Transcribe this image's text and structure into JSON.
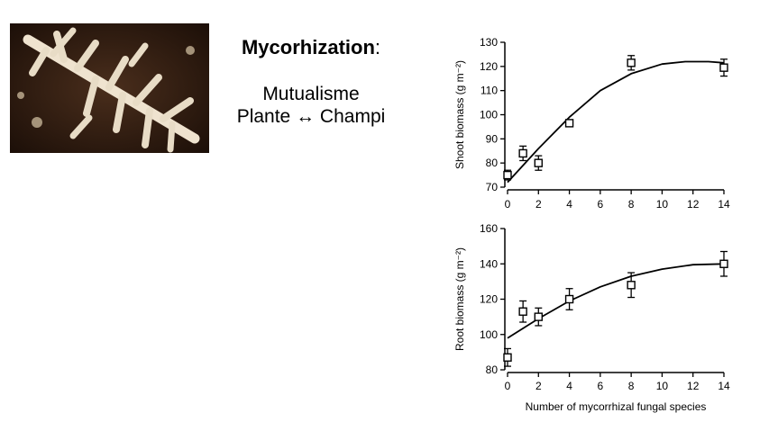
{
  "caption": {
    "title": "Mycorhization",
    "title_suffix": ":",
    "line1": "Mutualisme",
    "line2_left": "Plante",
    "line2_arrow": "↔",
    "line2_right": "Champi"
  },
  "chart_data": [
    {
      "type": "scatter",
      "title": "",
      "xlabel": "",
      "ylabel": "Shoot biomass  (g m⁻²)",
      "xlim": [
        0,
        14
      ],
      "ylim": [
        70,
        130
      ],
      "xticks": [
        0,
        2,
        4,
        6,
        8,
        10,
        12,
        14
      ],
      "yticks": [
        70,
        80,
        90,
        100,
        110,
        120,
        130
      ],
      "points": [
        {
          "x": 0,
          "y": 75,
          "err": 2
        },
        {
          "x": 1,
          "y": 84,
          "err": 3
        },
        {
          "x": 2,
          "y": 80,
          "err": 3
        },
        {
          "x": 4,
          "y": 96.5,
          "err": 1
        },
        {
          "x": 8,
          "y": 121.5,
          "err": 3
        },
        {
          "x": 14,
          "y": 119.5,
          "err": 3.5
        }
      ],
      "fit": {
        "x": [
          0,
          2,
          4,
          6,
          8,
          10,
          11.5,
          13,
          14
        ],
        "y": [
          72,
          86,
          99,
          110,
          117,
          121,
          122,
          122,
          121.5
        ]
      }
    },
    {
      "type": "scatter",
      "title": "",
      "xlabel": "Number  of  mycorrhizal  fungal  species",
      "ylabel": "Root biomass  (g m⁻²)",
      "xlim": [
        0,
        14
      ],
      "ylim": [
        80,
        160
      ],
      "xticks": [
        0,
        2,
        4,
        6,
        8,
        10,
        12,
        14
      ],
      "yticks": [
        80,
        100,
        120,
        140,
        160
      ],
      "points": [
        {
          "x": 0,
          "y": 87,
          "err": 5
        },
        {
          "x": 1,
          "y": 113,
          "err": 6
        },
        {
          "x": 2,
          "y": 110,
          "err": 5
        },
        {
          "x": 4,
          "y": 120,
          "err": 6
        },
        {
          "x": 8,
          "y": 128,
          "err": 7
        },
        {
          "x": 14,
          "y": 140,
          "err": 7
        }
      ],
      "fit": {
        "x": [
          0,
          2,
          4,
          6,
          8,
          10,
          12,
          14
        ],
        "y": [
          98,
          109,
          119,
          127,
          133,
          137,
          139.5,
          140
        ]
      }
    }
  ]
}
